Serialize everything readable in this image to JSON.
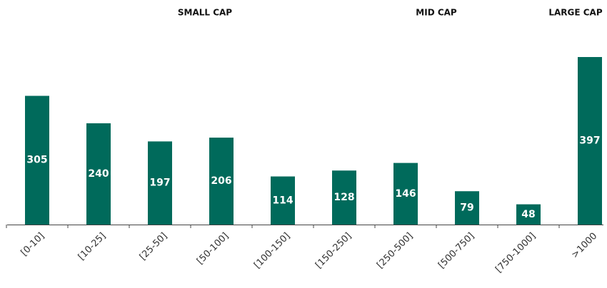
{
  "chart_data": {
    "type": "bar",
    "annotations": [
      "SMALL CAP",
      "MID CAP",
      "LARGE CAP"
    ],
    "categories": [
      "[0-10]",
      "[10-25]",
      "[25-50]",
      "[50-100]",
      "[100-150]",
      "[150-250]",
      "[250-500]",
      "[500-750]",
      "[750-1000]",
      ">1000"
    ],
    "values": [
      305,
      240,
      197,
      206,
      114,
      128,
      146,
      79,
      48,
      397
    ],
    "color": "#006a5b"
  }
}
